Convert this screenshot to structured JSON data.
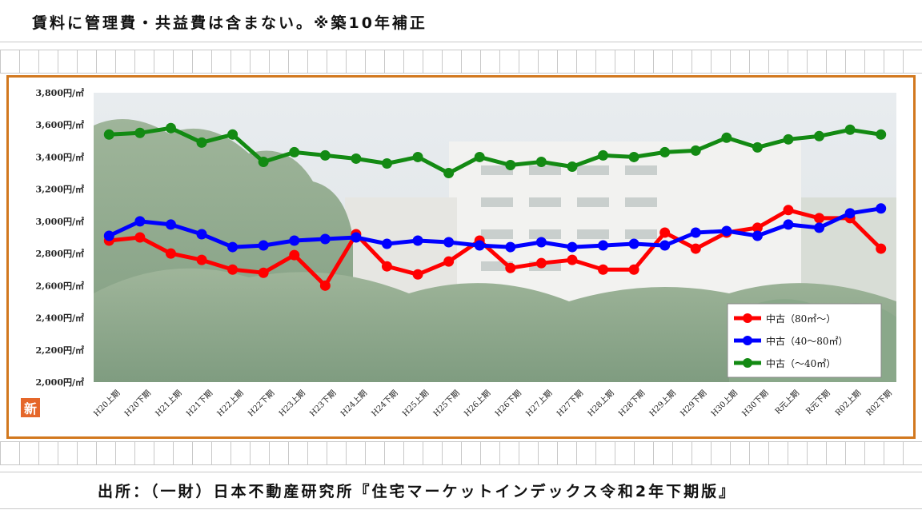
{
  "header": {
    "note": "賃料に管理費・共益費は含まない。※築10年補正"
  },
  "footer": {
    "source": "出所：（一財）日本不動産研究所『住宅マーケットインデックス令和2年下期版』"
  },
  "badge": {
    "label": "新",
    "color": "#e5672a"
  },
  "frame_color": "#d2781e",
  "chart_data": {
    "type": "line",
    "title": "",
    "xlabel": "",
    "ylabel": "",
    "ylim": [
      2000,
      3800
    ],
    "yticks": [
      2000,
      2200,
      2400,
      2600,
      2800,
      3000,
      3200,
      3400,
      3600,
      3800
    ],
    "ytick_suffix": "円/㎡",
    "grid": false,
    "legend_position": "bottom-right",
    "categories": [
      "H20上期",
      "H20下期",
      "H21上期",
      "H21下期",
      "H22上期",
      "H22下期",
      "H23上期",
      "H23下期",
      "H24上期",
      "H24下期",
      "H25上期",
      "H25下期",
      "H26上期",
      "H26下期",
      "H27上期",
      "H27下期",
      "H28上期",
      "H28下期",
      "H29上期",
      "H29下期",
      "H30上期",
      "H30下期",
      "R元上期",
      "R元下期",
      "R02上期",
      "R02下期"
    ],
    "series": [
      {
        "name": "中古（80㎡～）",
        "color": "#ff0000",
        "values": [
          2880,
          2900,
          2800,
          2760,
          2700,
          2680,
          2790,
          2600,
          2920,
          2720,
          2670,
          2750,
          2880,
          2710,
          2740,
          2760,
          2700,
          2700,
          2930,
          2830,
          2930,
          2960,
          3070,
          3020,
          3020,
          2830
        ]
      },
      {
        "name": "中古（40～80㎡）",
        "color": "#0000ff",
        "values": [
          2910,
          3000,
          2980,
          2920,
          2840,
          2850,
          2880,
          2890,
          2900,
          2860,
          2880,
          2870,
          2850,
          2840,
          2870,
          2840,
          2850,
          2860,
          2850,
          2930,
          2940,
          2910,
          2980,
          2960,
          3050,
          3080
        ]
      },
      {
        "name": "中古（～40㎡）",
        "color": "#138a13",
        "values": [
          3540,
          3550,
          3580,
          3490,
          3540,
          3370,
          3430,
          3410,
          3390,
          3360,
          3400,
          3300,
          3400,
          3350,
          3370,
          3340,
          3410,
          3400,
          3430,
          3440,
          3520,
          3460,
          3510,
          3530,
          3570,
          3540
        ]
      }
    ]
  }
}
